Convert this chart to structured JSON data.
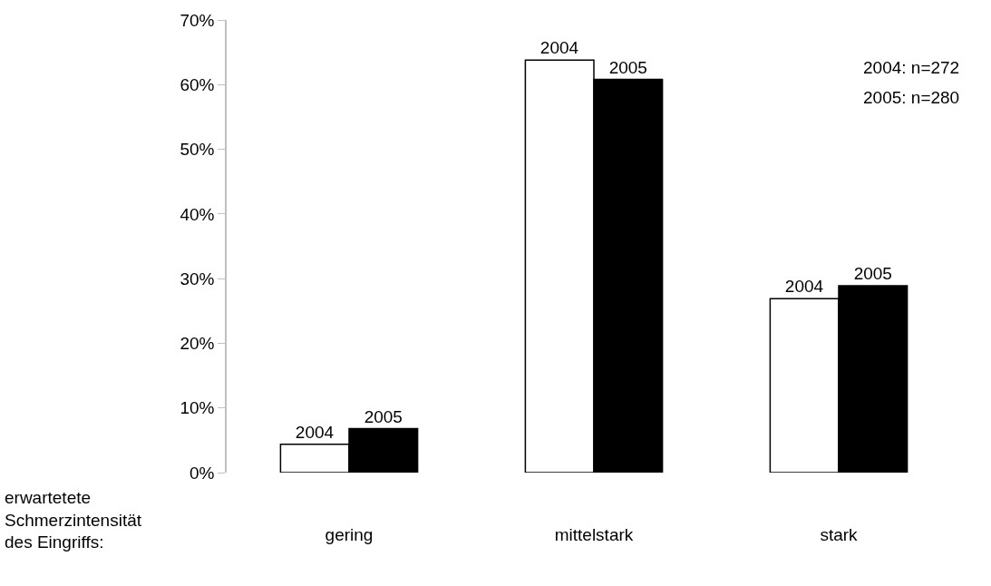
{
  "chart_data": {
    "type": "bar",
    "xlabel": "erwartetete\nSchmerzintensität\ndes Eingriffs:",
    "categories": [
      "gering",
      "mittelstark",
      "stark"
    ],
    "series": [
      {
        "name": "2004",
        "color": "#ffffff",
        "values": [
          4.4,
          63.8,
          26.9
        ]
      },
      {
        "name": "2005",
        "color": "#000000",
        "values": [
          6.8,
          60.8,
          28.9
        ]
      }
    ],
    "ylim": [
      0,
      70
    ],
    "yticks": [
      {
        "value": 0,
        "label": "0%"
      },
      {
        "value": 10,
        "label": "10%"
      },
      {
        "value": 20,
        "label": "20%"
      },
      {
        "value": 30,
        "label": "30%"
      },
      {
        "value": 40,
        "label": "40%"
      },
      {
        "value": 50,
        "label": "50%"
      },
      {
        "value": 60,
        "label": "60%"
      },
      {
        "value": 70,
        "label": "70%"
      }
    ],
    "annotations": [
      "2004: n=272",
      "2005: n=280"
    ],
    "legend": false
  }
}
